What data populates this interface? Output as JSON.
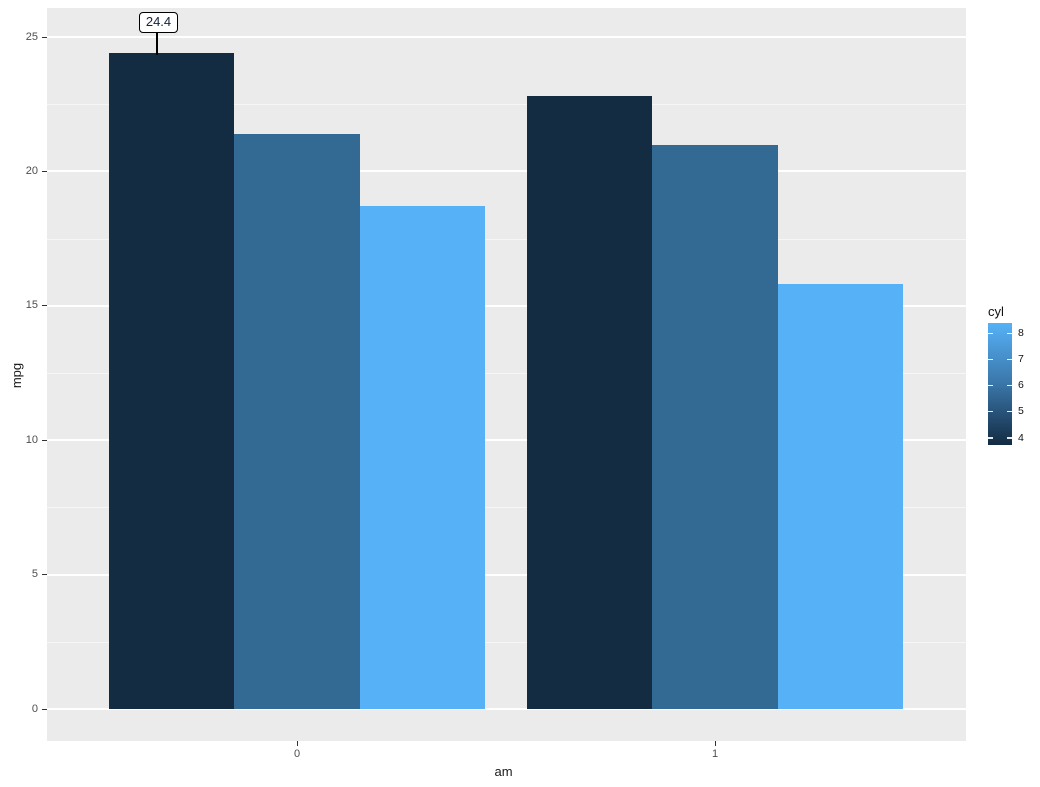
{
  "chart_data": {
    "type": "bar",
    "title": "",
    "xlabel": "am",
    "ylabel": "mpg",
    "categories": [
      "0",
      "1"
    ],
    "series": [
      {
        "name": "4",
        "values": [
          24.4,
          22.8
        ],
        "color": "#142C42"
      },
      {
        "name": "6",
        "values": [
          21.4,
          21.0
        ],
        "color": "#336A93"
      },
      {
        "name": "8",
        "values": [
          18.7,
          15.8
        ],
        "color": "#56B1F7"
      }
    ],
    "ylim": [
      0,
      25
    ],
    "yticks": [
      "0",
      "5",
      "10",
      "15",
      "20",
      "25"
    ],
    "ytick_values": [
      0,
      5,
      10,
      15,
      20,
      25
    ],
    "minor_tick_values": [
      2.5,
      7.5,
      12.5,
      17.5,
      22.5
    ],
    "grid": true,
    "legend_position": "right",
    "legend": {
      "title": "cyl",
      "type": "colorbar",
      "labels": [
        "8",
        "7",
        "6",
        "5",
        "4"
      ],
      "gradient_top_color": "#56B1F7",
      "gradient_bottom_color": "#132B43"
    },
    "annotation": {
      "text": "24.4",
      "category": "0",
      "series": "4",
      "value": 24.4
    }
  },
  "colors": {
    "panel_background": "#EBEBEB",
    "grid_major": "#FFFFFF",
    "grid_minor": "rgba(255,255,255,0.55)",
    "axis_tick": "#333333",
    "axis_tick_label": "#4D4D4D",
    "axis_title": "#1A1A1A",
    "annotation_border": "#000000",
    "annotation_background": "#FFFFFF"
  }
}
